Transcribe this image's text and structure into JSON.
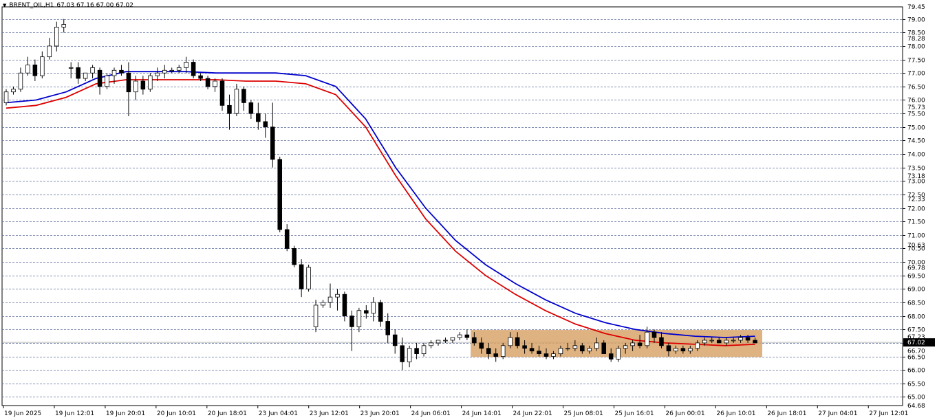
{
  "header": {
    "symbol": "BRENT_OIL,H1",
    "ohlc": "67.03 67.16 67.00 67.02"
  },
  "chart_data": {
    "type": "candlestick",
    "symbol": "BRENT_OIL",
    "timeframe": "H1",
    "ylim": [
      64.68,
      79.45
    ],
    "grid": true,
    "grid_style": "dashed",
    "price_levels": [
      "79.00",
      "78.50",
      "78.00",
      "77.50",
      "77.00",
      "76.50",
      "76.00",
      "75.50",
      "75.00",
      "74.50",
      "74.00",
      "73.50",
      "73.00",
      "72.50",
      "72.00",
      "71.50",
      "71.00",
      "70.50",
      "70.00",
      "69.50",
      "69.00",
      "68.50",
      "68.00",
      "67.50",
      "67.00",
      "66.50",
      "66.00",
      "65.50",
      "65.00"
    ],
    "minor_labels": [
      "79.45",
      "78.28",
      "75.73",
      "73.18",
      "72.33",
      "70.63",
      "69.78",
      "67.23",
      "66.70",
      "64.68"
    ],
    "current_price": "67.02",
    "time_labels": [
      "19 Jun 2025",
      "19 Jun 12:01",
      "19 Jun 20:01",
      "20 Jun 10:01",
      "20 Jun 18:01",
      "23 Jun 04:01",
      "23 Jun 12:01",
      "23 Jun 20:01",
      "24 Jun 06:01",
      "24 Jun 14:01",
      "24 Jun 22:01",
      "25 Jun 08:01",
      "25 Jun 16:01",
      "26 Jun 00:01",
      "26 Jun 10:01",
      "26 Jun 18:01",
      "27 Jun 04:01",
      "27 Jun 12:01"
    ],
    "consolidation_zone": {
      "price_low": 66.48,
      "price_high": 67.48,
      "color": "#d9a66b"
    },
    "ma_series": [
      {
        "color": "#0000cc",
        "values": [
          75.9,
          76.0,
          76.3,
          76.8,
          77.05,
          77.05,
          77.05,
          77.0,
          77.0,
          77.0,
          76.9,
          76.5,
          75.3,
          73.5,
          72.0,
          70.8,
          69.9,
          69.2,
          68.6,
          68.1,
          67.75,
          67.5,
          67.35,
          67.25,
          67.2,
          67.25
        ]
      },
      {
        "color": "#dd0000",
        "values": [
          75.7,
          75.8,
          76.1,
          76.6,
          76.75,
          76.75,
          76.75,
          76.75,
          76.7,
          76.7,
          76.6,
          76.2,
          75.0,
          73.2,
          71.6,
          70.4,
          69.5,
          68.8,
          68.2,
          67.7,
          67.35,
          67.1,
          67.0,
          66.95,
          66.9,
          66.95
        ]
      }
    ],
    "candles": [
      [
        75.9,
        76.4,
        75.8,
        76.3
      ],
      [
        76.3,
        76.5,
        76.2,
        76.4
      ],
      [
        76.4,
        77.2,
        76.3,
        77.0
      ],
      [
        77.0,
        77.6,
        76.9,
        77.3
      ],
      [
        77.3,
        77.5,
        76.7,
        76.9
      ],
      [
        76.9,
        77.8,
        76.8,
        77.6
      ],
      [
        77.6,
        78.3,
        77.5,
        78.0
      ],
      [
        78.0,
        78.9,
        77.8,
        78.7
      ],
      [
        78.7,
        79.0,
        78.5,
        78.8
      ],
      [
        77.2,
        77.4,
        76.8,
        77.2
      ],
      [
        77.2,
        77.4,
        76.6,
        76.8
      ],
      [
        76.8,
        77.0,
        76.7,
        77.0
      ],
      [
        77.0,
        77.3,
        76.8,
        77.2
      ],
      [
        77.1,
        77.2,
        76.2,
        76.5
      ],
      [
        76.5,
        77.0,
        76.4,
        76.9
      ],
      [
        76.9,
        77.2,
        76.6,
        77.1
      ],
      [
        77.1,
        77.3,
        76.9,
        77.0
      ],
      [
        77.0,
        77.4,
        75.4,
        76.3
      ],
      [
        76.3,
        76.9,
        76.0,
        76.7
      ],
      [
        76.7,
        76.9,
        76.2,
        76.4
      ],
      [
        76.4,
        77.0,
        76.3,
        76.9
      ],
      [
        76.9,
        77.2,
        76.7,
        77.0
      ],
      [
        77.0,
        77.3,
        76.8,
        77.1
      ],
      [
        77.1,
        77.2,
        77.0,
        77.1
      ],
      [
        77.1,
        77.3,
        77.0,
        77.2
      ],
      [
        77.2,
        77.6,
        77.0,
        77.4
      ],
      [
        77.4,
        77.5,
        76.8,
        76.9
      ],
      [
        76.9,
        77.0,
        76.7,
        76.8
      ],
      [
        76.8,
        76.9,
        76.4,
        76.5
      ],
      [
        76.5,
        76.8,
        76.3,
        76.7
      ],
      [
        76.7,
        76.8,
        75.6,
        75.8
      ],
      [
        75.8,
        76.2,
        74.9,
        75.5
      ],
      [
        75.5,
        76.6,
        75.4,
        76.4
      ],
      [
        76.4,
        76.5,
        75.6,
        75.9
      ],
      [
        75.9,
        76.0,
        75.3,
        75.5
      ],
      [
        75.5,
        75.9,
        74.9,
        75.2
      ],
      [
        75.2,
        75.5,
        74.6,
        75.0
      ],
      [
        75.0,
        75.9,
        73.5,
        73.8
      ],
      [
        73.8,
        73.9,
        71.1,
        71.2
      ],
      [
        71.2,
        71.4,
        70.4,
        70.5
      ],
      [
        70.5,
        70.6,
        69.8,
        69.9
      ],
      [
        69.9,
        70.1,
        68.7,
        69.0
      ],
      [
        69.0,
        69.9,
        68.9,
        69.8
      ],
      [
        67.6,
        68.6,
        67.4,
        68.4
      ],
      [
        68.4,
        68.6,
        68.3,
        68.5
      ],
      [
        68.5,
        69.2,
        68.3,
        68.7
      ],
      [
        68.7,
        69.0,
        68.2,
        68.8
      ],
      [
        68.8,
        68.9,
        67.8,
        68.0
      ],
      [
        68.0,
        68.2,
        66.7,
        67.6
      ],
      [
        67.6,
        68.3,
        67.4,
        68.2
      ],
      [
        68.2,
        68.4,
        67.9,
        68.1
      ],
      [
        68.1,
        68.7,
        67.8,
        68.5
      ],
      [
        68.5,
        68.6,
        67.6,
        67.8
      ],
      [
        67.8,
        68.1,
        67.0,
        67.3
      ],
      [
        67.3,
        67.5,
        66.6,
        66.9
      ],
      [
        66.9,
        67.2,
        66.0,
        66.3
      ],
      [
        66.3,
        66.9,
        66.1,
        66.8
      ],
      [
        66.8,
        67.0,
        66.4,
        66.6
      ],
      [
        66.6,
        67.0,
        66.5,
        66.9
      ],
      [
        66.9,
        67.1,
        66.8,
        67.0
      ],
      [
        67.0,
        67.1,
        66.9,
        67.1
      ],
      [
        67.1,
        67.2,
        67.0,
        67.1
      ],
      [
        67.1,
        67.2,
        67.0,
        67.2
      ],
      [
        67.2,
        67.4,
        67.1,
        67.3
      ],
      [
        67.3,
        67.5,
        67.1,
        67.2
      ],
      [
        67.2,
        67.4,
        66.9,
        67.0
      ],
      [
        67.0,
        67.2,
        66.6,
        66.8
      ],
      [
        66.8,
        67.0,
        66.4,
        66.6
      ],
      [
        66.6,
        66.8,
        66.3,
        66.5
      ],
      [
        66.5,
        67.0,
        66.4,
        66.9
      ],
      [
        66.9,
        67.4,
        66.8,
        67.2
      ],
      [
        67.2,
        67.4,
        66.8,
        66.9
      ],
      [
        66.9,
        67.1,
        66.6,
        66.8
      ],
      [
        66.8,
        67.0,
        66.6,
        66.7
      ],
      [
        66.7,
        66.9,
        66.5,
        66.6
      ],
      [
        66.6,
        66.8,
        66.4,
        66.5
      ],
      [
        66.5,
        66.7,
        66.4,
        66.6
      ],
      [
        66.6,
        66.9,
        66.5,
        66.8
      ],
      [
        66.8,
        67.0,
        66.7,
        66.8
      ],
      [
        66.8,
        67.1,
        66.7,
        66.9
      ],
      [
        66.9,
        67.0,
        66.6,
        66.7
      ],
      [
        66.7,
        66.9,
        66.6,
        66.8
      ],
      [
        66.8,
        67.2,
        66.7,
        67.0
      ],
      [
        67.0,
        67.1,
        66.6,
        66.6
      ],
      [
        66.6,
        66.8,
        66.3,
        66.4
      ],
      [
        66.4,
        66.9,
        66.3,
        66.8
      ],
      [
        66.8,
        67.0,
        66.6,
        66.9
      ],
      [
        66.9,
        67.1,
        66.7,
        67.0
      ],
      [
        67.0,
        67.3,
        66.8,
        66.9
      ],
      [
        66.9,
        67.6,
        66.8,
        67.4
      ],
      [
        67.4,
        67.5,
        67.0,
        67.2
      ],
      [
        67.2,
        67.4,
        66.8,
        66.9
      ],
      [
        66.9,
        67.0,
        66.5,
        66.7
      ],
      [
        66.7,
        66.9,
        66.6,
        66.8
      ],
      [
        66.8,
        66.9,
        66.6,
        66.7
      ],
      [
        66.7,
        66.9,
        66.6,
        66.8
      ],
      [
        66.8,
        67.1,
        66.7,
        67.0
      ],
      [
        67.0,
        67.2,
        66.9,
        67.1
      ],
      [
        67.1,
        67.2,
        67.0,
        67.1
      ],
      [
        67.1,
        67.2,
        67.0,
        67.0
      ],
      [
        67.0,
        67.2,
        66.9,
        67.1
      ],
      [
        67.1,
        67.2,
        67.0,
        67.1
      ],
      [
        67.1,
        67.3,
        67.0,
        67.2
      ],
      [
        67.2,
        67.3,
        67.0,
        67.1
      ],
      [
        67.1,
        67.2,
        67.0,
        67.0
      ]
    ]
  }
}
